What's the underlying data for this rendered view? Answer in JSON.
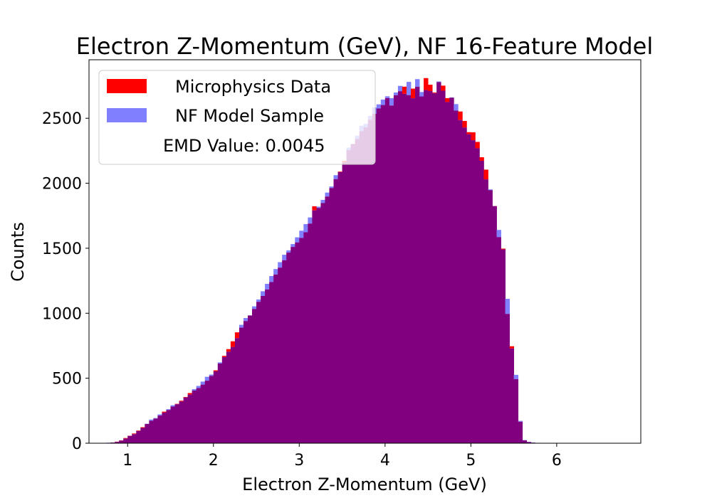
{
  "chart_data": {
    "type": "bar",
    "title": "Electron Z-Momentum (GeV), NF 16-Feature Model",
    "xlabel": "Electron Z-Momentum (GeV)",
    "ylabel": "Counts",
    "xlim": [
      0.55,
      6.98
    ],
    "ylim": [
      0,
      2950
    ],
    "xticks": [
      1,
      2,
      3,
      4,
      5,
      6
    ],
    "yticks": [
      0,
      500,
      1000,
      1500,
      2000,
      2500
    ],
    "bin_start": 0.75,
    "bin_width": 0.05,
    "grid": false,
    "legend_position": "top-left",
    "overlap_color": "#800080",
    "series": [
      {
        "name": "Microphysics Data",
        "color": "#ff0000",
        "values": [
          3,
          5,
          12,
          22,
          40,
          58,
          75,
          98,
          123,
          148,
          173,
          190,
          213,
          243,
          256,
          282,
          303,
          327,
          356,
          386,
          405,
          424,
          451,
          481,
          518,
          561,
          613,
          672,
          724,
          784,
          853,
          889,
          940,
          983,
          1033,
          1088,
          1133,
          1183,
          1240,
          1298,
          1351,
          1408,
          1467,
          1510,
          1545,
          1579,
          1623,
          1690,
          1823,
          1810,
          1848,
          1898,
          1963,
          2032,
          2090,
          2172,
          2255,
          2300,
          2340,
          2400,
          2430,
          2488,
          2535,
          2575,
          2602,
          2655,
          2598,
          2677,
          2708,
          2743,
          2678,
          2728,
          2742,
          2668,
          2809,
          2758,
          2698,
          2778,
          2751,
          2655,
          2658,
          2559,
          2552,
          2479,
          2393,
          2392,
          2318,
          2200,
          2105,
          1947,
          1825,
          1586,
          1497,
          995,
          746,
          493,
          165,
          22,
          9,
          4
        ]
      },
      {
        "name": "NF Model Sample",
        "color": "#8080ff",
        "values": [
          4,
          6,
          10,
          20,
          36,
          56,
          70,
          94,
          118,
          150,
          182,
          194,
          222,
          236,
          262,
          292,
          300,
          321,
          352,
          374,
          416,
          441,
          474,
          511,
          528,
          553,
          622,
          663,
          704,
          741,
          808,
          911,
          963,
          983,
          1053,
          1106,
          1169,
          1226,
          1286,
          1340,
          1393,
          1450,
          1484,
          1532,
          1584,
          1635,
          1686,
          1737,
          1791,
          1820,
          1872,
          1928,
          1975,
          2062,
          2086,
          2160,
          2274,
          2304,
          2366,
          2443,
          2457,
          2518,
          2583,
          2607,
          2644,
          2669,
          2655,
          2698,
          2749,
          2688,
          2780,
          2654,
          2801,
          2702,
          2717,
          2709,
          2692,
          2783,
          2712,
          2625,
          2661,
          2609,
          2486,
          2429,
          2377,
          2331,
          2269,
          2173,
          2030,
          1953,
          1824,
          1641,
          1491,
          1111,
          729,
          526,
          172,
          24,
          11,
          6
        ]
      }
    ],
    "annotation": "EMD Value: 0.0045"
  }
}
